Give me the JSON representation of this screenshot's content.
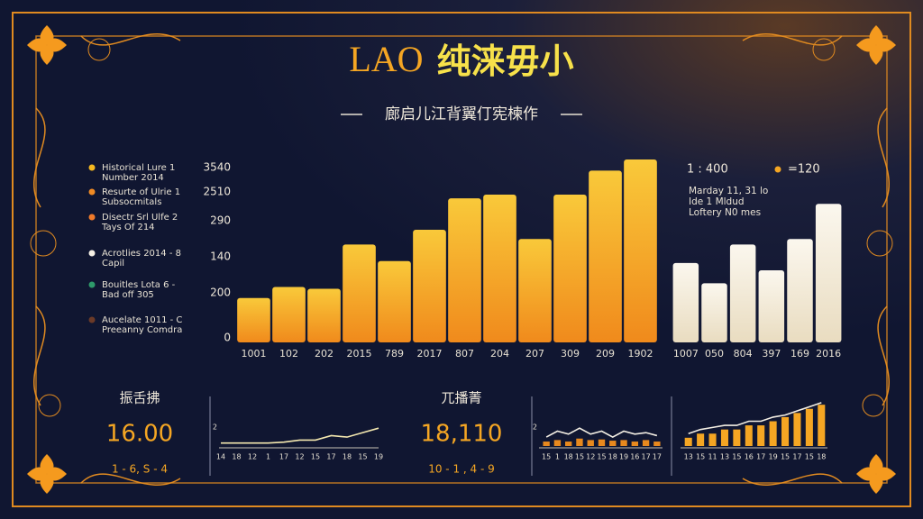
{
  "header": {
    "title_latin": "LAO",
    "title_cjk": "纯涞毋小",
    "subtitle": "廊启儿江背翼仃宪楝作"
  },
  "legend": [
    {
      "label": "Historical Lure 1",
      "sublabel": "Number 2014",
      "color": "#f5b820"
    },
    {
      "label": "Resurte of Ulrie 1",
      "sublabel": "Subsocmitals",
      "color": "#f08a24"
    },
    {
      "label": "Disectr Srl Ulfe 2",
      "sublabel": "Tays Of 214",
      "color": "#f07a2a"
    },
    {
      "label": "Acrotlies 2014 - 8",
      "sublabel": "Capil",
      "color": "#f4efe4"
    },
    {
      "label": "Bouitles Lota 6 -",
      "sublabel": "Bad off 305",
      "color": "#2e9a6a"
    },
    {
      "label": "Aucelate 1011 - C",
      "sublabel": "Preeanny Comdra",
      "color": "#6b3a28"
    }
  ],
  "chart_data": [
    {
      "type": "bar",
      "axis_labels": [
        "3540",
        "2510",
        "290",
        "140",
        "200",
        "0"
      ],
      "categories": [
        "1001",
        "102",
        "202",
        "2015",
        "789",
        "2017",
        "807",
        "204",
        "207",
        "309",
        "209",
        "1902"
      ],
      "values": [
        24,
        30,
        29,
        53,
        44,
        61,
        78,
        80,
        56,
        80,
        93,
        99
      ],
      "ylim": [
        0,
        100
      ],
      "color": "#f5a623",
      "color_top": "#f9c93a"
    },
    {
      "type": "bar",
      "notes": [
        "1 : 400",
        "=120"
      ],
      "note_color": "#f5a623",
      "annotation": [
        "Marday 11, 31 lo",
        "Ide 1 Mldud",
        "Loftery N0 mes"
      ],
      "categories": [
        "1007",
        "050",
        "804",
        "397",
        "169",
        "2016"
      ],
      "values": [
        43,
        32,
        53,
        39,
        56,
        75
      ],
      "ylim": [
        0,
        100
      ],
      "color": "#f3ecdc",
      "color_top": "#fbf7ee"
    },
    {
      "type": "line",
      "y_label": "2",
      "categories": [
        "14",
        "18",
        "12",
        "1",
        "17",
        "12",
        "15",
        "17",
        "18",
        "15",
        "19"
      ],
      "values": [
        1,
        1,
        1,
        1,
        1.3,
        2,
        2,
        3.5,
        3,
        4.5,
        6
      ],
      "ylim": [
        0,
        10
      ],
      "color": "#f5e9b0"
    },
    {
      "type": "combo",
      "y_label": "2",
      "categories": [
        "15",
        "1",
        "18",
        "15",
        "12",
        "15",
        "18",
        "19",
        "16",
        "17",
        "17"
      ],
      "values": [
        3,
        5,
        4,
        6,
        4,
        5,
        3,
        5,
        4,
        4.5,
        3.5
      ],
      "bar_values": [
        1.5,
        2,
        1.5,
        2.5,
        2,
        2.2,
        1.8,
        2,
        1.5,
        2,
        1.5
      ],
      "ylim": [
        0,
        10
      ],
      "color": "#f4efe4",
      "bar_color": "#e8891e"
    },
    {
      "type": "combo",
      "categories": [
        "13",
        "15",
        "11",
        "13",
        "15",
        "16",
        "17",
        "19",
        "15",
        "17",
        "15",
        "18"
      ],
      "values": [
        3,
        4,
        4.5,
        5,
        5,
        6,
        6,
        7,
        7.5,
        8.5,
        9.5,
        10.5
      ],
      "bar_values": [
        2,
        3,
        3,
        4,
        4,
        5,
        5,
        6,
        7,
        8,
        9,
        10
      ],
      "ylim": [
        0,
        12
      ],
      "color": "#f4efe4",
      "bar_color": "#f5a623"
    }
  ],
  "stats": [
    {
      "label": "振舌拂",
      "value": "16.00",
      "range": "1 - 6, S - 4"
    },
    {
      "label": "兀播菁",
      "value": "18,110",
      "range": "10 - 1 , 4 - 9"
    }
  ]
}
